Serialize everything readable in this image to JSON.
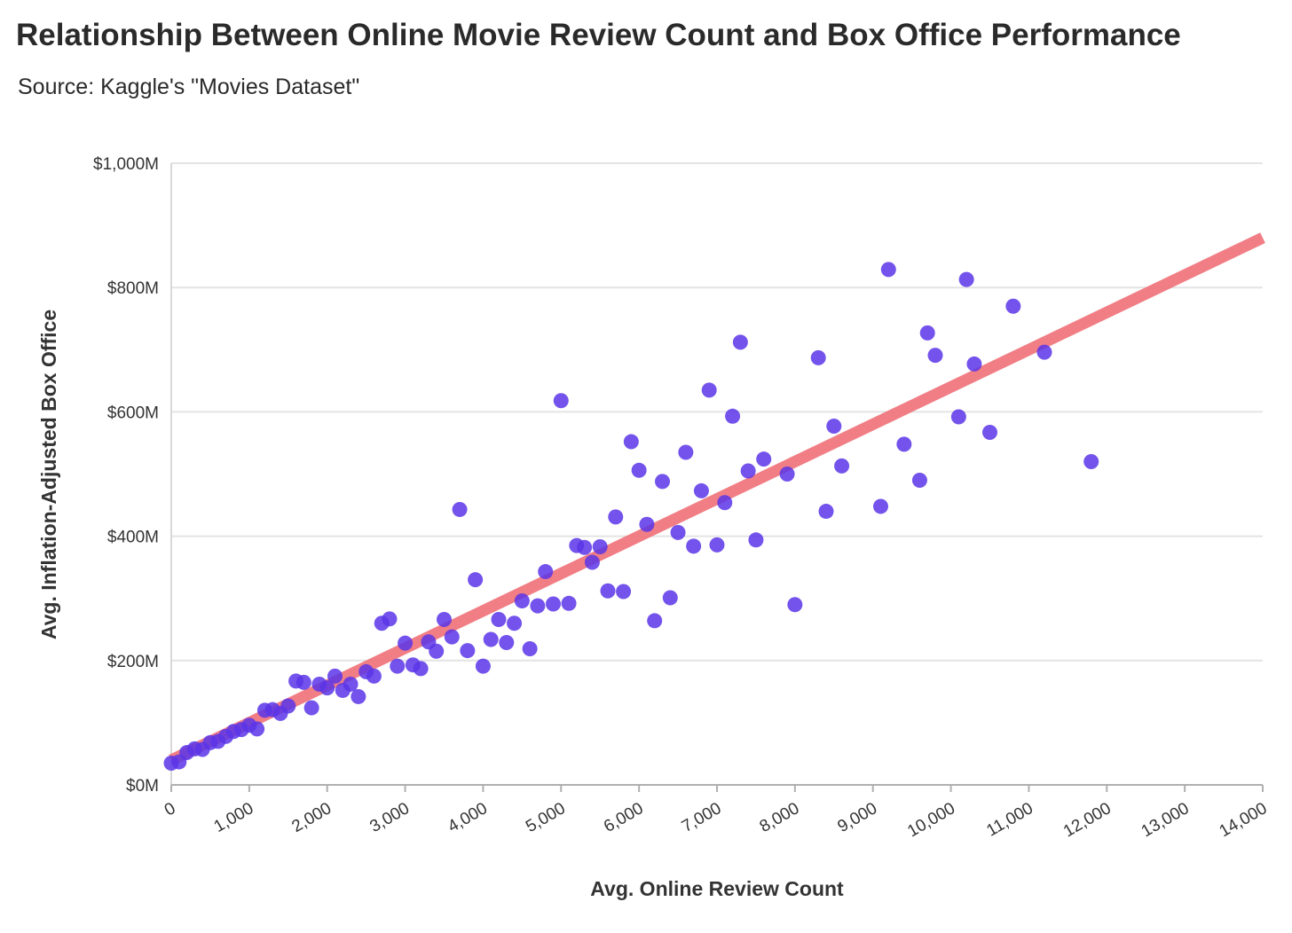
{
  "title": "Relationship Between Online Movie Review Count and Box Office Performance",
  "subtitle": "Source: Kaggle's \"Movies Dataset\"",
  "chart_data": {
    "type": "scatter",
    "xlabel": "Avg. Online Review Count",
    "ylabel": "Avg. Inflation-Adjusted Box Office",
    "xlim": [
      0,
      14000
    ],
    "ylim": [
      0,
      1000
    ],
    "x_ticks": [
      {
        "value": 0,
        "label": "0"
      },
      {
        "value": 1000,
        "label": "1,000"
      },
      {
        "value": 2000,
        "label": "2,000"
      },
      {
        "value": 3000,
        "label": "3,000"
      },
      {
        "value": 4000,
        "label": "4,000"
      },
      {
        "value": 5000,
        "label": "5,000"
      },
      {
        "value": 6000,
        "label": "6,000"
      },
      {
        "value": 7000,
        "label": "7,000"
      },
      {
        "value": 8000,
        "label": "8,000"
      },
      {
        "value": 9000,
        "label": "9,000"
      },
      {
        "value": 10000,
        "label": "10,000"
      },
      {
        "value": 11000,
        "label": "11,000"
      },
      {
        "value": 12000,
        "label": "12,000"
      },
      {
        "value": 13000,
        "label": "13,000"
      },
      {
        "value": 14000,
        "label": "14,000"
      }
    ],
    "y_ticks": [
      {
        "value": 0,
        "label": "$0M"
      },
      {
        "value": 200,
        "label": "$200M"
      },
      {
        "value": 400,
        "label": "$400M"
      },
      {
        "value": 600,
        "label": "$600M"
      },
      {
        "value": 800,
        "label": "$800M"
      },
      {
        "value": 1000,
        "label": "$1,000M"
      }
    ],
    "grid": "horizontal",
    "point_color": "#5a35e8",
    "trend_color": "#f07078",
    "trendline": {
      "x": [
        0,
        14000
      ],
      "y": [
        40,
        880
      ]
    },
    "points": [
      [
        0,
        35
      ],
      [
        100,
        37
      ],
      [
        200,
        52
      ],
      [
        300,
        58
      ],
      [
        400,
        57
      ],
      [
        500,
        68
      ],
      [
        600,
        70
      ],
      [
        700,
        78
      ],
      [
        800,
        86
      ],
      [
        900,
        89
      ],
      [
        1000,
        96
      ],
      [
        1100,
        90
      ],
      [
        1200,
        120
      ],
      [
        1300,
        121
      ],
      [
        1400,
        115
      ],
      [
        1500,
        127
      ],
      [
        1600,
        167
      ],
      [
        1700,
        165
      ],
      [
        1800,
        124
      ],
      [
        1900,
        162
      ],
      [
        2000,
        156
      ],
      [
        2100,
        175
      ],
      [
        2200,
        152
      ],
      [
        2300,
        162
      ],
      [
        2400,
        142
      ],
      [
        2500,
        182
      ],
      [
        2600,
        175
      ],
      [
        2700,
        260
      ],
      [
        2800,
        267
      ],
      [
        2900,
        191
      ],
      [
        3000,
        228
      ],
      [
        3100,
        193
      ],
      [
        3200,
        187
      ],
      [
        3300,
        230
      ],
      [
        3400,
        215
      ],
      [
        3500,
        266
      ],
      [
        3600,
        238
      ],
      [
        3700,
        443
      ],
      [
        3800,
        216
      ],
      [
        3900,
        330
      ],
      [
        4000,
        191
      ],
      [
        4100,
        234
      ],
      [
        4200,
        266
      ],
      [
        4300,
        229
      ],
      [
        4400,
        260
      ],
      [
        4500,
        296
      ],
      [
        4600,
        219
      ],
      [
        4700,
        288
      ],
      [
        4800,
        343
      ],
      [
        4900,
        291
      ],
      [
        5000,
        618
      ],
      [
        5100,
        292
      ],
      [
        5200,
        385
      ],
      [
        5300,
        382
      ],
      [
        5400,
        358
      ],
      [
        5500,
        383
      ],
      [
        5600,
        312
      ],
      [
        5700,
        431
      ],
      [
        5800,
        311
      ],
      [
        5900,
        552
      ],
      [
        6000,
        506
      ],
      [
        6100,
        419
      ],
      [
        6200,
        264
      ],
      [
        6300,
        488
      ],
      [
        6400,
        301
      ],
      [
        6500,
        406
      ],
      [
        6600,
        535
      ],
      [
        6700,
        384
      ],
      [
        6800,
        473
      ],
      [
        6900,
        635
      ],
      [
        7000,
        386
      ],
      [
        7100,
        454
      ],
      [
        7200,
        593
      ],
      [
        7300,
        712
      ],
      [
        7400,
        505
      ],
      [
        7500,
        394
      ],
      [
        7600,
        524
      ],
      [
        7900,
        500
      ],
      [
        8000,
        290
      ],
      [
        8300,
        687
      ],
      [
        8400,
        440
      ],
      [
        8500,
        577
      ],
      [
        8600,
        513
      ],
      [
        9100,
        448
      ],
      [
        9200,
        829
      ],
      [
        9400,
        548
      ],
      [
        9600,
        490
      ],
      [
        9700,
        727
      ],
      [
        9800,
        691
      ],
      [
        10100,
        592
      ],
      [
        10200,
        813
      ],
      [
        10300,
        677
      ],
      [
        10500,
        567
      ],
      [
        10800,
        770
      ],
      [
        11200,
        696
      ],
      [
        11800,
        520
      ]
    ]
  }
}
